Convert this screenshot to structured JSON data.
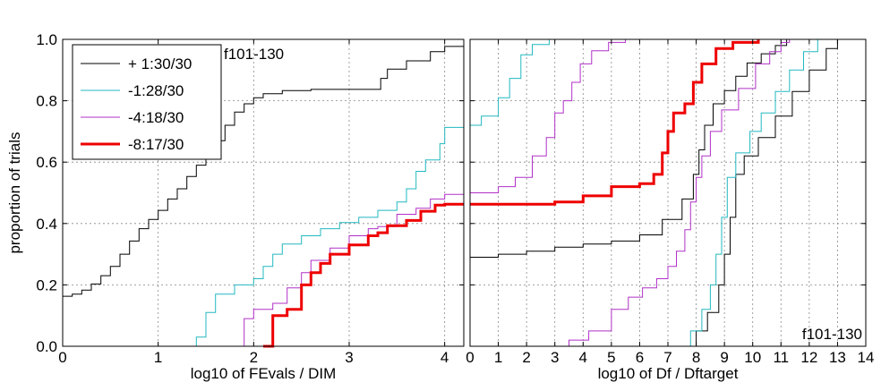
{
  "chart_data": [
    {
      "type": "line",
      "panel": "left",
      "xlabel": "log10 of FEvals / DIM",
      "ylabel": "proportion of trials",
      "annotation": "f101-130",
      "xlim": [
        0,
        4.2
      ],
      "ylim": [
        0,
        1
      ],
      "xticks": [
        "0",
        "1",
        "2",
        "3",
        "4"
      ],
      "yticks": [
        "0.0",
        "0.2",
        "0.4",
        "0.6",
        "0.8",
        "1.0"
      ],
      "grid": true,
      "legend_position": "top-left",
      "series": [
        {
          "name": "+ 1:30/30",
          "color": "#000000",
          "width": 1,
          "points": [
            [
              0,
              0.163
            ],
            [
              0.1,
              0.17
            ],
            [
              0.2,
              0.183
            ],
            [
              0.3,
              0.203
            ],
            [
              0.4,
              0.23
            ],
            [
              0.5,
              0.26
            ],
            [
              0.6,
              0.3
            ],
            [
              0.7,
              0.343
            ],
            [
              0.8,
              0.383
            ],
            [
              0.9,
              0.413
            ],
            [
              1.0,
              0.443
            ],
            [
              1.1,
              0.48
            ],
            [
              1.2,
              0.513
            ],
            [
              1.3,
              0.553
            ],
            [
              1.4,
              0.59
            ],
            [
              1.5,
              0.627
            ],
            [
              1.6,
              0.67
            ],
            [
              1.7,
              0.72
            ],
            [
              1.8,
              0.763
            ],
            [
              1.9,
              0.79
            ],
            [
              2.0,
              0.81
            ],
            [
              2.1,
              0.823
            ],
            [
              2.3,
              0.833
            ],
            [
              2.6,
              0.837
            ],
            [
              3.0,
              0.837
            ],
            [
              3.3,
              0.837
            ],
            [
              3.33,
              0.873
            ],
            [
              3.4,
              0.903
            ],
            [
              3.6,
              0.93
            ],
            [
              3.85,
              0.96
            ],
            [
              4.0,
              0.977
            ],
            [
              4.2,
              0.977
            ]
          ]
        },
        {
          "name": "-1:28/30",
          "color": "#22b8c0",
          "width": 1,
          "points": [
            [
              1.33,
              0
            ],
            [
              1.4,
              0.03
            ],
            [
              1.5,
              0.11
            ],
            [
              1.6,
              0.17
            ],
            [
              1.8,
              0.2
            ],
            [
              2.0,
              0.22
            ],
            [
              2.1,
              0.26
            ],
            [
              2.2,
              0.3
            ],
            [
              2.3,
              0.333
            ],
            [
              2.5,
              0.36
            ],
            [
              2.7,
              0.383
            ],
            [
              2.9,
              0.403
            ],
            [
              3.1,
              0.42
            ],
            [
              3.3,
              0.443
            ],
            [
              3.5,
              0.47
            ],
            [
              3.6,
              0.513
            ],
            [
              3.7,
              0.57
            ],
            [
              3.8,
              0.607
            ],
            [
              3.95,
              0.66
            ],
            [
              4.0,
              0.713
            ],
            [
              4.2,
              0.713
            ]
          ]
        },
        {
          "name": "-4:18/30",
          "color": "#b030c8",
          "width": 1,
          "points": [
            [
              1.85,
              0
            ],
            [
              1.9,
              0.09
            ],
            [
              2.0,
              0.12
            ],
            [
              2.2,
              0.14
            ],
            [
              2.35,
              0.19
            ],
            [
              2.5,
              0.24
            ],
            [
              2.6,
              0.28
            ],
            [
              2.8,
              0.32
            ],
            [
              3.0,
              0.36
            ],
            [
              3.2,
              0.383
            ],
            [
              3.3,
              0.39
            ],
            [
              3.5,
              0.43
            ],
            [
              3.7,
              0.45
            ],
            [
              3.85,
              0.48
            ],
            [
              4.0,
              0.495
            ],
            [
              4.2,
              0.495
            ]
          ]
        },
        {
          "name": "-8:17/30",
          "color": "#ee0000",
          "width": 3,
          "points": [
            [
              2.1,
              0
            ],
            [
              2.2,
              0.1
            ],
            [
              2.35,
              0.12
            ],
            [
              2.5,
              0.2
            ],
            [
              2.6,
              0.24
            ],
            [
              2.7,
              0.27
            ],
            [
              2.8,
              0.3
            ],
            [
              3.0,
              0.33
            ],
            [
              3.2,
              0.36
            ],
            [
              3.3,
              0.37
            ],
            [
              3.4,
              0.393
            ],
            [
              3.6,
              0.41
            ],
            [
              3.75,
              0.44
            ],
            [
              3.9,
              0.46
            ],
            [
              4.0,
              0.463
            ],
            [
              4.2,
              0.463
            ]
          ]
        }
      ]
    },
    {
      "type": "line",
      "panel": "right",
      "xlabel": "log10 of Df / Dftarget",
      "annotation": "f101-130",
      "xlim": [
        0,
        14
      ],
      "ylim": [
        0,
        1
      ],
      "xticks": [
        "0",
        "1",
        "2",
        "3",
        "4",
        "5",
        "6",
        "7",
        "8",
        "9",
        "10",
        "11",
        "12",
        "13",
        "14"
      ],
      "grid": true,
      "series": [
        {
          "name": "+ 1:30/30",
          "color": "#000000",
          "width": 1,
          "points": [
            [
              0,
              1.0
            ],
            [
              0.5,
              1.0
            ]
          ],
          "points2": [
            [
              0,
              0.29
            ],
            [
              1,
              0.3
            ],
            [
              2,
              0.31
            ],
            [
              3,
              0.323
            ],
            [
              4,
              0.333
            ],
            [
              5,
              0.343
            ],
            [
              6,
              0.363
            ],
            [
              6.8,
              0.413
            ],
            [
              7.5,
              0.48
            ],
            [
              7.9,
              0.56
            ],
            [
              8.1,
              0.64
            ],
            [
              8.3,
              0.72
            ],
            [
              8.6,
              0.79
            ],
            [
              9.0,
              0.833
            ],
            [
              9.4,
              0.88
            ],
            [
              9.8,
              0.923
            ],
            [
              10.3,
              0.953
            ],
            [
              10.8,
              0.98
            ],
            [
              11.2,
              1.0
            ]
          ],
          "points3": [
            [
              7.6,
              0
            ],
            [
              8.0,
              0.05
            ],
            [
              8.4,
              0.11
            ],
            [
              8.8,
              0.2
            ],
            [
              9.0,
              0.3
            ],
            [
              9.2,
              0.42
            ],
            [
              9.4,
              0.56
            ],
            [
              9.7,
              0.62
            ],
            [
              10.2,
              0.68
            ],
            [
              10.8,
              0.75
            ],
            [
              11.4,
              0.83
            ],
            [
              12.0,
              0.9
            ],
            [
              12.6,
              0.97
            ],
            [
              13.0,
              1.0
            ]
          ]
        },
        {
          "name": "-1:28/30",
          "color": "#22b8c0",
          "width": 1,
          "points": [
            [
              0,
              0.72
            ],
            [
              0.4,
              0.75
            ],
            [
              1.0,
              0.81
            ],
            [
              1.4,
              0.873
            ],
            [
              1.8,
              0.95
            ],
            [
              2.2,
              0.983
            ],
            [
              2.8,
              1.0
            ]
          ],
          "points2": [
            [
              7.5,
              0
            ],
            [
              7.8,
              0.05
            ],
            [
              8.2,
              0.12
            ],
            [
              8.5,
              0.2
            ],
            [
              8.7,
              0.3
            ],
            [
              8.9,
              0.42
            ],
            [
              9.1,
              0.55
            ],
            [
              9.4,
              0.63
            ],
            [
              9.9,
              0.7
            ],
            [
              10.3,
              0.76
            ],
            [
              10.8,
              0.83
            ],
            [
              11.3,
              0.9
            ],
            [
              11.8,
              0.96
            ],
            [
              12.3,
              1.0
            ]
          ]
        },
        {
          "name": "-4:18/30",
          "color": "#b030c8",
          "width": 1,
          "points": [
            [
              0,
              0.5
            ],
            [
              1.0,
              0.52
            ],
            [
              1.6,
              0.55
            ],
            [
              2.2,
              0.62
            ],
            [
              2.7,
              0.68
            ],
            [
              3.0,
              0.76
            ],
            [
              3.3,
              0.8
            ],
            [
              3.6,
              0.86
            ],
            [
              3.9,
              0.92
            ],
            [
              4.3,
              0.963
            ],
            [
              4.9,
              0.99
            ],
            [
              5.5,
              1.0
            ]
          ],
          "points2": [
            [
              3.0,
              0
            ],
            [
              3.5,
              0.02
            ],
            [
              4.2,
              0.05
            ],
            [
              5.0,
              0.12
            ],
            [
              5.6,
              0.16
            ],
            [
              6.1,
              0.19
            ],
            [
              6.6,
              0.22
            ],
            [
              7.0,
              0.26
            ],
            [
              7.3,
              0.31
            ],
            [
              7.6,
              0.38
            ],
            [
              7.8,
              0.47
            ],
            [
              8.0,
              0.55
            ],
            [
              8.2,
              0.62
            ],
            [
              8.5,
              0.7
            ],
            [
              8.9,
              0.77
            ],
            [
              9.5,
              0.84
            ],
            [
              10.1,
              0.92
            ],
            [
              10.6,
              0.96
            ],
            [
              11.0,
              0.99
            ],
            [
              11.3,
              1.0
            ]
          ]
        },
        {
          "name": "-8:17/30",
          "color": "#ee0000",
          "width": 3,
          "points": [
            [
              0,
              0.463
            ],
            [
              2,
              0.463
            ],
            [
              3,
              0.47
            ],
            [
              4,
              0.49
            ],
            [
              5,
              0.52
            ],
            [
              6,
              0.53
            ],
            [
              6.5,
              0.56
            ],
            [
              6.8,
              0.63
            ],
            [
              7.0,
              0.7
            ],
            [
              7.2,
              0.76
            ],
            [
              7.6,
              0.79
            ],
            [
              7.9,
              0.86
            ],
            [
              8.2,
              0.92
            ],
            [
              8.7,
              0.97
            ],
            [
              9.3,
              0.99
            ],
            [
              10.2,
              1.0
            ]
          ]
        }
      ]
    }
  ]
}
